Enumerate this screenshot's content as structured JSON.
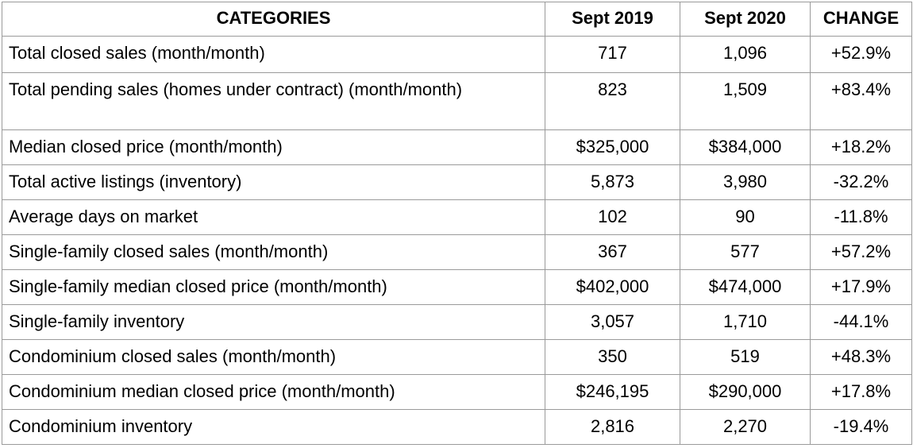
{
  "table": {
    "header": [
      "CATEGORIES",
      "Sept 2019",
      "Sept 2020",
      "CHANGE"
    ],
    "rows": [
      [
        "Total closed sales (month/month)",
        "717",
        "1,096",
        "+52.9%"
      ],
      [
        "Total pending sales (homes under contract) (month/month)",
        "823",
        "1,509",
        "+83.4%"
      ],
      [
        "Median closed price (month/month)",
        "$325,000",
        "$384,000",
        "+18.2%"
      ],
      [
        "Total active listings (inventory)",
        "5,873",
        "3,980",
        "-32.2%"
      ],
      [
        "Average days on market",
        "102",
        "90",
        "-11.8%"
      ],
      [
        "Single-family closed sales (month/month)",
        "367",
        "577",
        "+57.2%"
      ],
      [
        "Single-family median closed price (month/month)",
        "$402,000",
        "$474,000",
        "+17.9%"
      ],
      [
        "Single-family inventory",
        "3,057",
        "1,710",
        "-44.1%"
      ],
      [
        "Condominium closed sales (month/month)",
        "350",
        "519",
        "+48.3%"
      ],
      [
        "Condominium median closed price (month/month)",
        "$246,195",
        "$290,000",
        "+17.8%"
      ],
      [
        "Condominium inventory",
        "2,816",
        "2,270",
        "-19.4%"
      ]
    ]
  }
}
